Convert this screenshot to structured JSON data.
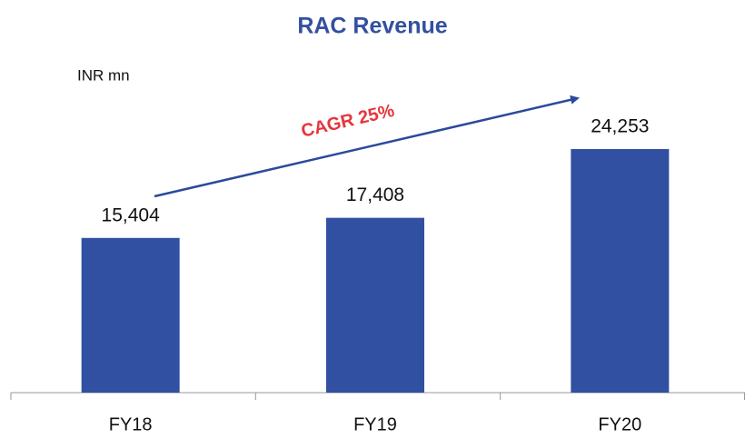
{
  "chart_data": {
    "type": "bar",
    "title": "RAC Revenue",
    "unit_label": "INR mn",
    "annotation": "CAGR 25%",
    "categories": [
      "FY18",
      "FY19",
      "FY20"
    ],
    "values": [
      15404,
      17408,
      24253
    ],
    "value_labels": [
      "15,404",
      "17,408",
      "24,253"
    ],
    "color": "#3150a1"
  }
}
